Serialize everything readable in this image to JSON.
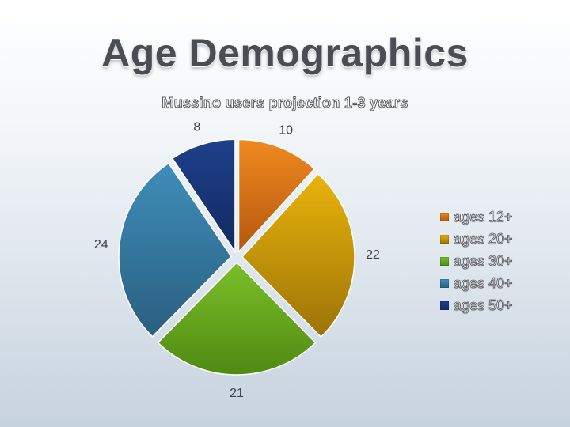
{
  "slide": {
    "title": "Age Demographics"
  },
  "chart_data": {
    "type": "pie",
    "title": "Mussino users projection 1-3 years",
    "categories": [
      "ages 12+",
      "ages 20+",
      "ages 30+",
      "ages 40+",
      "ages 50+"
    ],
    "values": [
      10,
      22,
      21,
      24,
      8
    ],
    "colors": [
      "#ef8a1f",
      "#e8b40c",
      "#7bbf2a",
      "#3e8eb9",
      "#1e3f8a"
    ],
    "dark_colors": [
      "#b5560e",
      "#9c7306",
      "#4f8a12",
      "#2a5f80",
      "#122a60"
    ],
    "legend_position": "right",
    "style": "exploded"
  }
}
